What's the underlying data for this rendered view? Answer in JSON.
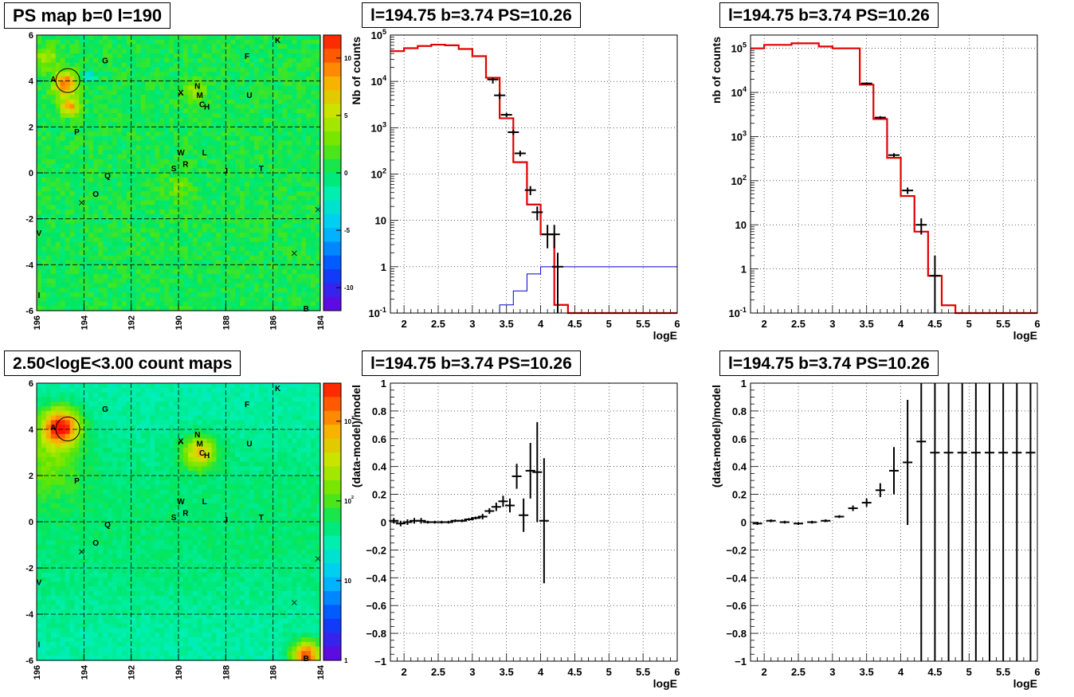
{
  "titles": {
    "ps_map": "PS map b=0 l=190",
    "count_map": "2.50<logE<3.00 count maps",
    "spec1": "l=194.75 b=3.74 PS=10.26",
    "spec2": "l=194.75 b=3.74 PS=10.26",
    "resid1": "l=194.75 b=3.74 PS=10.26",
    "resid2": "l=194.75 b=3.74 PS=10.26"
  },
  "chart_data": [
    {
      "id": "ps_map",
      "type": "heatmap",
      "title": "PS map b=0 l=190",
      "x_ticks": [
        196,
        194,
        192,
        190,
        188,
        186,
        184
      ],
      "y_ticks": [
        -6,
        -4,
        -2,
        0,
        2,
        4,
        6
      ],
      "xlim": [
        196,
        184
      ],
      "ylim": [
        -6,
        6
      ],
      "colorbar_ticks": [
        -10,
        -5,
        0,
        5,
        10
      ],
      "colorbar_range": [
        -12,
        12
      ],
      "sources": [
        {
          "label": "A",
          "l": 195.3,
          "b": 4.1
        },
        {
          "label": "G",
          "l": 193.1,
          "b": 4.9
        },
        {
          "label": "F",
          "l": 187.1,
          "b": 5.1
        },
        {
          "label": "K",
          "l": 185.8,
          "b": 5.8
        },
        {
          "label": "X",
          "l": 189.9,
          "b": 3.5
        },
        {
          "label": "N",
          "l": 189.2,
          "b": 3.8
        },
        {
          "label": "M",
          "l": 189.1,
          "b": 3.4
        },
        {
          "label": "C",
          "l": 189.0,
          "b": 3.0
        },
        {
          "label": "H",
          "l": 188.8,
          "b": 2.9
        },
        {
          "label": "U",
          "l": 187.0,
          "b": 3.4
        },
        {
          "label": "P",
          "l": 194.3,
          "b": 1.8
        },
        {
          "label": "W",
          "l": 189.9,
          "b": 0.9
        },
        {
          "label": "L",
          "l": 188.9,
          "b": 0.9
        },
        {
          "label": "R",
          "l": 189.7,
          "b": 0.4
        },
        {
          "label": "S",
          "l": 190.2,
          "b": 0.2
        },
        {
          "label": "J",
          "l": 188.0,
          "b": 0.1
        },
        {
          "label": "T",
          "l": 186.5,
          "b": 0.2
        },
        {
          "label": "Q",
          "l": 193.0,
          "b": -0.1
        },
        {
          "label": "O",
          "l": 193.5,
          "b": -0.9
        },
        {
          "label": "V",
          "l": 195.9,
          "b": -2.6
        },
        {
          "label": "I",
          "l": 195.9,
          "b": -5.3
        },
        {
          "label": "B",
          "l": 184.6,
          "b": -5.9
        }
      ],
      "crosses": [
        {
          "l": 194.1,
          "b": -1.3
        },
        {
          "l": 184.1,
          "b": -1.6
        },
        {
          "l": 185.1,
          "b": -3.5
        },
        {
          "l": 189.9,
          "b": 3.5
        }
      ],
      "circle": {
        "l": 194.75,
        "b": 3.74
      }
    },
    {
      "id": "spec1",
      "type": "line",
      "title": "l=194.75 b=3.74 PS=10.26",
      "xlabel": "logE",
      "ylabel": "Nb of counts",
      "xlim": [
        1.8,
        6
      ],
      "ylim": [
        0.1,
        100000
      ],
      "log_y": true,
      "grid": true,
      "bin_edges": [
        1.8,
        2.0,
        2.2,
        2.4,
        2.6,
        2.8,
        3.0,
        3.2,
        3.4,
        3.6,
        3.8,
        4.0,
        4.2,
        4.4,
        4.6,
        4.8,
        5.0,
        5.2,
        5.4,
        5.6,
        5.8,
        6.0
      ],
      "model": [
        45000,
        52000,
        58000,
        62000,
        60000,
        50000,
        35000,
        12000,
        1600,
        180,
        22,
        5,
        0.15,
        0.1,
        0.1,
        0.1,
        0.1,
        0.1,
        0.1,
        0.1,
        0.1
      ],
      "point_sources": [
        0.1,
        0.1,
        0.1,
        0.1,
        0.1,
        0.1,
        0.1,
        0.1,
        0.15,
        0.3,
        0.7,
        1.0,
        1.0,
        1.0,
        1.0,
        1.0,
        1.0,
        1.0,
        1.0,
        1.0,
        1.0
      ],
      "data_points": [
        {
          "x": 3.3,
          "y": 11000,
          "lo": 9000,
          "hi": 12000
        },
        {
          "x": 3.4,
          "y": 5000,
          "lo": 4200,
          "hi": 5600
        },
        {
          "x": 3.5,
          "y": 1900,
          "lo": 1700,
          "hi": 2100
        },
        {
          "x": 3.6,
          "y": 800,
          "lo": 700,
          "hi": 900
        },
        {
          "x": 3.7,
          "y": 280,
          "lo": 240,
          "hi": 320
        },
        {
          "x": 3.85,
          "y": 45,
          "lo": 35,
          "hi": 55
        },
        {
          "x": 3.95,
          "y": 15,
          "lo": 10,
          "hi": 20
        },
        {
          "x": 4.1,
          "y": 5,
          "lo": 2.5,
          "hi": 8
        },
        {
          "x": 4.2,
          "y": 5,
          "lo": 2.5,
          "hi": 8
        },
        {
          "x": 4.25,
          "y": 1,
          "lo": 0.1,
          "hi": 2
        }
      ],
      "x_ticks": [
        2,
        2.5,
        3,
        3.5,
        4,
        4.5,
        5,
        5.5,
        6
      ],
      "y_ticks_label": [
        "10^{-1}",
        "1",
        "10",
        "10^{2}",
        "10^{3}",
        "10^{4}",
        "10^{5}"
      ]
    },
    {
      "id": "spec2",
      "type": "line",
      "title": "l=194.75 b=3.74 PS=10.26",
      "xlabel": "logE",
      "ylabel": "nb of counts",
      "xlim": [
        1.8,
        6
      ],
      "ylim": [
        0.1,
        200000
      ],
      "log_y": true,
      "grid": true,
      "bin_edges": [
        1.8,
        2.0,
        2.4,
        2.8,
        3.0,
        3.4,
        3.6,
        3.8,
        4.0,
        4.2,
        4.4,
        4.6,
        4.8,
        5.0,
        5.2,
        5.4,
        5.6,
        5.8,
        6.0
      ],
      "model": [
        100000,
        120000,
        130000,
        110000,
        100000,
        15000,
        2500,
        330,
        45,
        7,
        0.7,
        0.15,
        0.1,
        0.1,
        0.1,
        0.1,
        0.1,
        0.1
      ],
      "data_points": [
        {
          "x": 3.5,
          "y": 16000,
          "lo": 15000,
          "hi": 17000
        },
        {
          "x": 3.7,
          "y": 2700,
          "lo": 2500,
          "hi": 2900
        },
        {
          "x": 3.9,
          "y": 380,
          "lo": 340,
          "hi": 420
        },
        {
          "x": 4.1,
          "y": 60,
          "lo": 50,
          "hi": 70
        },
        {
          "x": 4.3,
          "y": 10,
          "lo": 6,
          "hi": 14
        },
        {
          "x": 4.5,
          "y": 0.7,
          "lo": 0.1,
          "hi": 2
        }
      ],
      "x_ticks": [
        2,
        2.5,
        3,
        3.5,
        4,
        4.5,
        5,
        5.5,
        6
      ],
      "y_ticks_label": [
        "10^{-1}",
        "1",
        "10",
        "10^{2}",
        "10^{3}",
        "10^{4}",
        "10^{5}"
      ]
    },
    {
      "id": "count_map",
      "type": "heatmap",
      "title": "2.50<logE<3.00 count maps",
      "x_ticks": [
        196,
        194,
        192,
        190,
        188,
        186,
        184
      ],
      "y_ticks": [
        -6,
        -4,
        -2,
        0,
        2,
        4,
        6
      ],
      "xlim": [
        196,
        184
      ],
      "ylim": [
        -6,
        6
      ],
      "colorbar_ticks": [
        1,
        10,
        100,
        1000
      ],
      "colorbar_log": true,
      "colorbar_tick_labels": [
        "1",
        "10",
        "10^{2}",
        "10^{3}"
      ]
    },
    {
      "id": "resid1",
      "type": "scatter",
      "title": "l=194.75 b=3.74 PS=10.26",
      "xlabel": "logE",
      "ylabel": "(data-model)/model",
      "xlim": [
        1.8,
        6
      ],
      "ylim": [
        -1,
        1
      ],
      "grid": true,
      "x_ticks": [
        2,
        2.5,
        3,
        3.5,
        4,
        4.5,
        5,
        5.5,
        6
      ],
      "y_ticks": [
        -1,
        -0.8,
        -0.6,
        -0.4,
        -0.2,
        0,
        0.2,
        0.4,
        0.6,
        0.8,
        1
      ],
      "points": [
        {
          "x": 1.85,
          "y": 0.01,
          "err": 0.02
        },
        {
          "x": 1.95,
          "y": -0.01,
          "err": 0.02
        },
        {
          "x": 2.05,
          "y": 0.0,
          "err": 0.02
        },
        {
          "x": 2.15,
          "y": 0.01,
          "err": 0.02
        },
        {
          "x": 2.25,
          "y": 0.01,
          "err": 0.02
        },
        {
          "x": 2.35,
          "y": 0.0,
          "err": 0.01
        },
        {
          "x": 2.45,
          "y": 0.0,
          "err": 0.01
        },
        {
          "x": 2.55,
          "y": 0.0,
          "err": 0.01
        },
        {
          "x": 2.65,
          "y": 0.0,
          "err": 0.01
        },
        {
          "x": 2.75,
          "y": 0.01,
          "err": 0.01
        },
        {
          "x": 2.85,
          "y": 0.01,
          "err": 0.01
        },
        {
          "x": 2.95,
          "y": 0.02,
          "err": 0.01
        },
        {
          "x": 3.05,
          "y": 0.03,
          "err": 0.01
        },
        {
          "x": 3.15,
          "y": 0.04,
          "err": 0.02
        },
        {
          "x": 3.25,
          "y": 0.08,
          "err": 0.02
        },
        {
          "x": 3.35,
          "y": 0.11,
          "err": 0.03
        },
        {
          "x": 3.45,
          "y": 0.15,
          "err": 0.04
        },
        {
          "x": 3.55,
          "y": 0.12,
          "err": 0.05
        },
        {
          "x": 3.65,
          "y": 0.33,
          "err": 0.09
        },
        {
          "x": 3.75,
          "y": 0.05,
          "err": 0.12
        },
        {
          "x": 3.85,
          "y": 0.37,
          "err": 0.2
        },
        {
          "x": 3.95,
          "y": 0.36,
          "err": 0.36
        },
        {
          "x": 4.05,
          "y": 0.01,
          "err": 0.45
        }
      ]
    },
    {
      "id": "resid2",
      "type": "scatter",
      "title": "l=194.75 b=3.74 PS=10.26",
      "xlabel": "logE",
      "ylabel": "(data-model)/model",
      "xlim": [
        1.8,
        6
      ],
      "ylim": [
        -1,
        1
      ],
      "grid": true,
      "x_ticks": [
        2,
        2.5,
        3,
        3.5,
        4,
        4.5,
        5,
        5.5,
        6
      ],
      "y_ticks": [
        -1,
        -0.8,
        -0.6,
        -0.4,
        -0.2,
        0,
        0.2,
        0.4,
        0.6,
        0.8,
        1
      ],
      "points": [
        {
          "x": 1.9,
          "y": -0.01,
          "err": 0.01
        },
        {
          "x": 2.1,
          "y": 0.01,
          "err": 0.01
        },
        {
          "x": 2.3,
          "y": 0.0,
          "err": 0.01
        },
        {
          "x": 2.5,
          "y": -0.01,
          "err": 0.01
        },
        {
          "x": 2.7,
          "y": 0.0,
          "err": 0.01
        },
        {
          "x": 2.9,
          "y": 0.01,
          "err": 0.01
        },
        {
          "x": 3.1,
          "y": 0.04,
          "err": 0.01
        },
        {
          "x": 3.3,
          "y": 0.1,
          "err": 0.02
        },
        {
          "x": 3.5,
          "y": 0.14,
          "err": 0.03
        },
        {
          "x": 3.7,
          "y": 0.23,
          "err": 0.05
        },
        {
          "x": 3.9,
          "y": 0.37,
          "err": 0.17
        },
        {
          "x": 4.1,
          "y": 0.43,
          "err": 0.45
        },
        {
          "x": 4.3,
          "y": 0.58,
          "err": 2.0
        },
        {
          "x": 4.5,
          "y": 0.5,
          "err": 2.0
        },
        {
          "x": 4.7,
          "y": 0.5,
          "err": 2.0
        },
        {
          "x": 4.9,
          "y": 0.5,
          "err": 2.0
        },
        {
          "x": 5.1,
          "y": 0.5,
          "err": 2.0
        },
        {
          "x": 5.3,
          "y": 0.5,
          "err": 2.0
        },
        {
          "x": 5.5,
          "y": 0.5,
          "err": 2.0
        },
        {
          "x": 5.7,
          "y": 0.5,
          "err": 2.0
        },
        {
          "x": 5.9,
          "y": 0.5,
          "err": 2.0
        }
      ]
    }
  ]
}
